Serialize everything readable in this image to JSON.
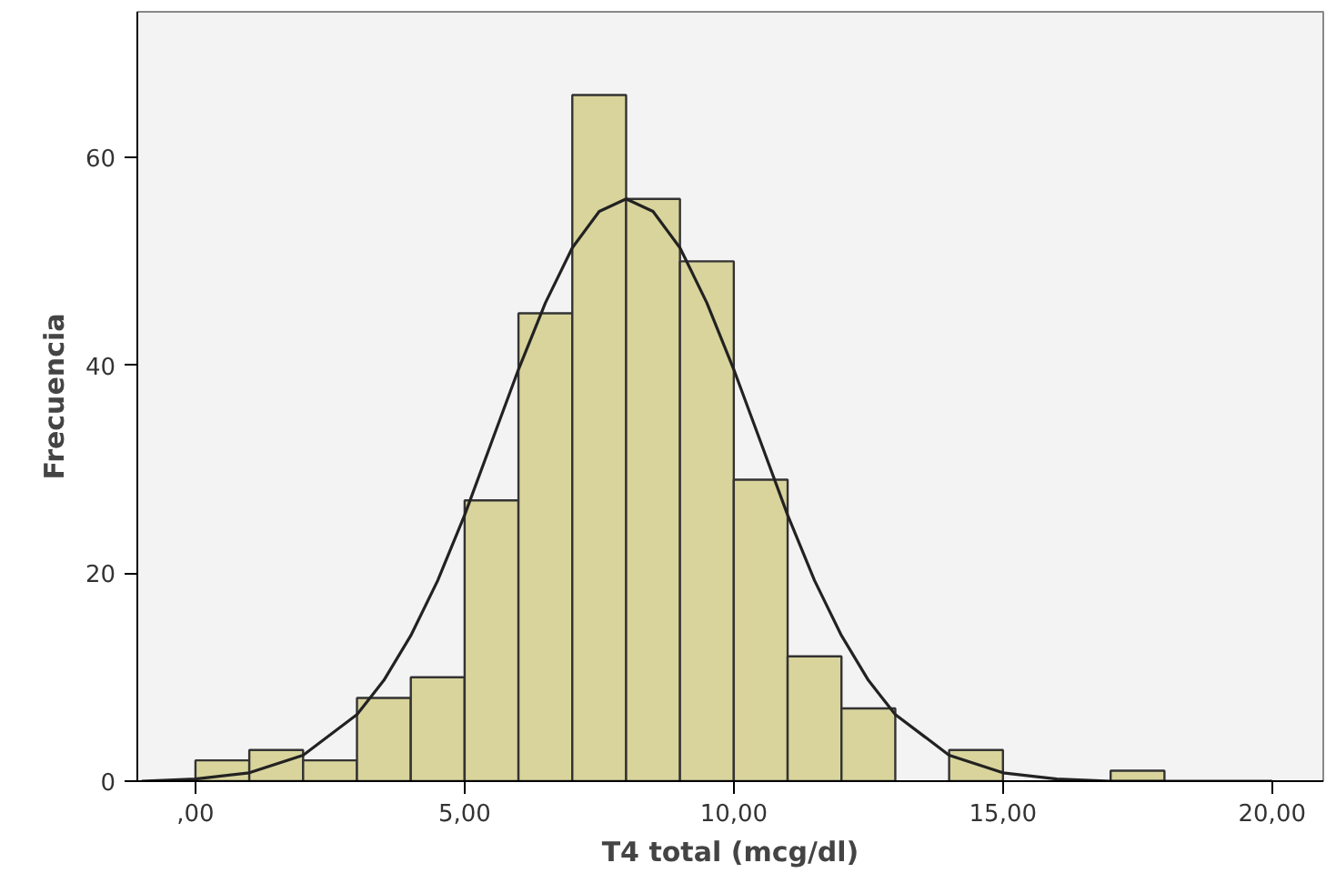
{
  "chart_data": {
    "type": "histogram",
    "xlabel": "T4 total (mcg/dl)",
    "ylabel": "Frecuencia",
    "bins": [
      0,
      1,
      2,
      3,
      4,
      5,
      6,
      7,
      8,
      9,
      10,
      11,
      12,
      13,
      14,
      15,
      16,
      17,
      18
    ],
    "values": [
      2,
      3,
      2,
      8,
      10,
      27,
      45,
      66,
      56,
      50,
      29,
      12,
      7,
      0,
      3,
      0,
      0,
      1
    ],
    "color": "#d9d49c",
    "series": [
      {
        "type": "line",
        "color": "#222222",
        "x": [
          -1,
          0,
          1,
          2,
          3,
          3.5,
          4,
          4.5,
          5,
          5.5,
          6,
          6.5,
          7,
          7.5,
          8,
          8.5,
          9,
          9.5,
          10,
          10.5,
          11,
          11.5,
          12,
          12.5,
          13,
          14,
          15,
          16,
          17,
          18,
          20
        ],
        "values": [
          0,
          0.2,
          0.8,
          2.5,
          6.4,
          9.7,
          14,
          19.3,
          25.6,
          32.6,
          39.6,
          46,
          51.3,
          54.8,
          56,
          54.8,
          51.3,
          46,
          39.6,
          32.6,
          25.6,
          19.3,
          14,
          9.7,
          6.4,
          2.5,
          0.8,
          0.2,
          0,
          0,
          0
        ]
      }
    ],
    "xlim": [
      -1.08,
      20.95
    ],
    "ylim": [
      0,
      74
    ],
    "xticks": [
      {
        "value": 0,
        "label": ",00"
      },
      {
        "value": 5,
        "label": "5,00"
      },
      {
        "value": 10,
        "label": "10,00"
      },
      {
        "value": 15,
        "label": "15,00"
      },
      {
        "value": 20,
        "label": "20,00"
      }
    ],
    "yticks": [
      0,
      20,
      40,
      60
    ],
    "grid": false
  }
}
